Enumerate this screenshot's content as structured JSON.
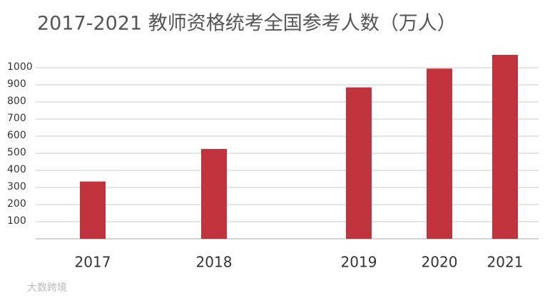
{
  "chart_data": {
    "type": "bar",
    "title": "2017-2021 教师资格统考全国参考人数（万人）",
    "categories": [
      "2017",
      "2018",
      "2019",
      "2020",
      "2021"
    ],
    "values": [
      335,
      525,
      885,
      995,
      1075
    ],
    "color": "#c1343d",
    "ylim": [
      0,
      1100
    ],
    "yticks": [
      100,
      200,
      300,
      400,
      500,
      600,
      700,
      800,
      900,
      1000
    ],
    "grid": true
  },
  "watermark": "大数跨境"
}
